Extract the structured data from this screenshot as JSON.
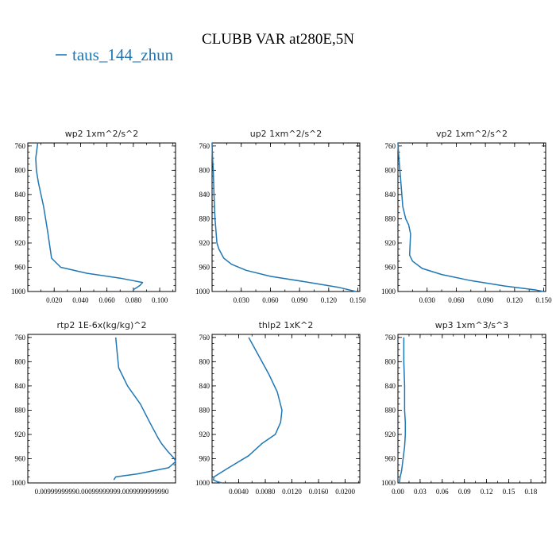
{
  "title": "CLUBB VAR at280E,5N",
  "legend": {
    "label": "taus_144_zhun",
    "color": "#1f77b4"
  },
  "chart_data": [
    {
      "type": "line",
      "title": "wp2  1xm^2/s^2",
      "xlim": [
        0.0,
        0.112
      ],
      "ylim": [
        1000,
        755
      ],
      "xticks": [
        0.02,
        0.04,
        0.06,
        0.08,
        0.1
      ],
      "xtick_labels": [
        "0.020",
        "0.040",
        "0.060",
        "0.080",
        "0.100"
      ],
      "yticks": [
        760,
        800,
        840,
        880,
        920,
        960,
        1000
      ],
      "series": [
        {
          "x": [
            0.0075,
            0.006,
            0.0065,
            0.008,
            0.01,
            0.012,
            0.0135,
            0.015,
            0.018,
            0.025,
            0.045,
            0.07,
            0.087,
            0.085,
            0.08
          ],
          "y": [
            755,
            780,
            800,
            820,
            840,
            860,
            880,
            900,
            945,
            960,
            970,
            978,
            985,
            990,
            997
          ]
        }
      ]
    },
    {
      "type": "line",
      "title": "up2  1xm^2/s^2",
      "xlim": [
        0.0,
        0.152
      ],
      "ylim": [
        1000,
        755
      ],
      "xticks": [
        0.03,
        0.06,
        0.09,
        0.12,
        0.15
      ],
      "xtick_labels": [
        "0.030",
        "0.060",
        "0.090",
        "0.120",
        "0.150"
      ],
      "yticks": [
        760,
        800,
        840,
        880,
        920,
        960,
        1000
      ],
      "series": [
        {
          "x": [
            0.0,
            0.0005,
            0.0012,
            0.002,
            0.003,
            0.004,
            0.005,
            0.007,
            0.012,
            0.02,
            0.035,
            0.06,
            0.1,
            0.13,
            0.148
          ],
          "y": [
            755,
            780,
            800,
            840,
            880,
            900,
            920,
            930,
            945,
            955,
            965,
            975,
            985,
            993,
            1000
          ]
        }
      ]
    },
    {
      "type": "line",
      "title": "vp2  1xm^2/s^2",
      "xlim": [
        0.0,
        0.152
      ],
      "ylim": [
        1000,
        755
      ],
      "xticks": [
        0.03,
        0.06,
        0.09,
        0.12,
        0.15
      ],
      "xtick_labels": [
        "0.030",
        "0.060",
        "0.090",
        "0.120",
        "0.150"
      ],
      "yticks": [
        760,
        800,
        840,
        880,
        920,
        960,
        1000
      ],
      "series": [
        {
          "x": [
            0.0,
            0.001,
            0.003,
            0.005,
            0.008,
            0.011,
            0.013,
            0.012,
            0.015,
            0.025,
            0.045,
            0.075,
            0.11,
            0.14,
            0.15
          ],
          "y": [
            755,
            780,
            820,
            860,
            880,
            890,
            905,
            940,
            950,
            962,
            972,
            982,
            991,
            997,
            1000
          ]
        }
      ]
    },
    {
      "type": "line",
      "title": "rtp2  1E-6x(kg/kg)^2",
      "xlim": [
        0.0096,
        0.00999999999993
      ],
      "ylim": [
        1000,
        755
      ],
      "xticks": [
        0.0099999999,
        0.009999999992,
        0.00999999999993
      ],
      "xtick_labels": [
        "0.00999999999",
        "0.00999999999",
        "0.00999999999"
      ],
      "xtick_rendered": "0.00999999990.00099999999.0099999999990",
      "yticks": [
        760,
        800,
        840,
        880,
        920,
        960,
        1000
      ],
      "series": [
        {
          "x": [
            0.009838,
            0.009842,
            0.009846,
            0.00987,
            0.009905,
            0.00993,
            0.009952,
            0.009962,
            0.009979,
            0.009997,
            0.00999999999,
            0.009981,
            0.009897,
            0.009838,
            0.009833
          ],
          "y": [
            760,
            785,
            810,
            840,
            870,
            900,
            925,
            935,
            948,
            960,
            965,
            975,
            985,
            990,
            995
          ]
        }
      ]
    },
    {
      "type": "line",
      "title": "thlp2  1xK^2",
      "xlim": [
        0.0,
        0.0222
      ],
      "ylim": [
        1000,
        755
      ],
      "xticks": [
        0.004,
        0.008,
        0.012,
        0.016,
        0.02
      ],
      "xtick_labels": [
        "0.0040",
        "0.0080",
        "0.0120",
        "0.0160",
        "0.0200"
      ],
      "yticks": [
        760,
        800,
        840,
        880,
        920,
        960,
        1000
      ],
      "series": [
        {
          "x": [
            0.0055,
            0.0065,
            0.0085,
            0.0098,
            0.0105,
            0.0103,
            0.0095,
            0.0075,
            0.0055,
            0.0025,
            0.001,
            0.0003,
            0.0002,
            0.0008,
            0.0015
          ],
          "y": [
            760,
            780,
            820,
            850,
            880,
            900,
            920,
            935,
            955,
            975,
            985,
            990,
            995,
            998,
            1000
          ]
        }
      ]
    },
    {
      "type": "line",
      "title": "wp3  1xm^3/s^3",
      "xlim": [
        0.0,
        0.2
      ],
      "ylim": [
        1000,
        755
      ],
      "xticks": [
        0.0,
        0.03,
        0.06,
        0.09,
        0.12,
        0.15,
        0.18
      ],
      "xtick_labels": [
        "0.00",
        "0.03",
        "0.06",
        "0.09",
        "0.12",
        "0.15",
        "0.18"
      ],
      "yticks": [
        760,
        800,
        840,
        880,
        920,
        960,
        1000
      ],
      "series": [
        {
          "x": [
            0.008,
            0.008,
            0.009,
            0.009,
            0.01,
            0.01,
            0.009,
            0.007,
            0.005,
            0.003,
            0.002
          ],
          "y": [
            760,
            800,
            840,
            880,
            900,
            920,
            940,
            960,
            980,
            990,
            1000
          ]
        }
      ]
    }
  ]
}
